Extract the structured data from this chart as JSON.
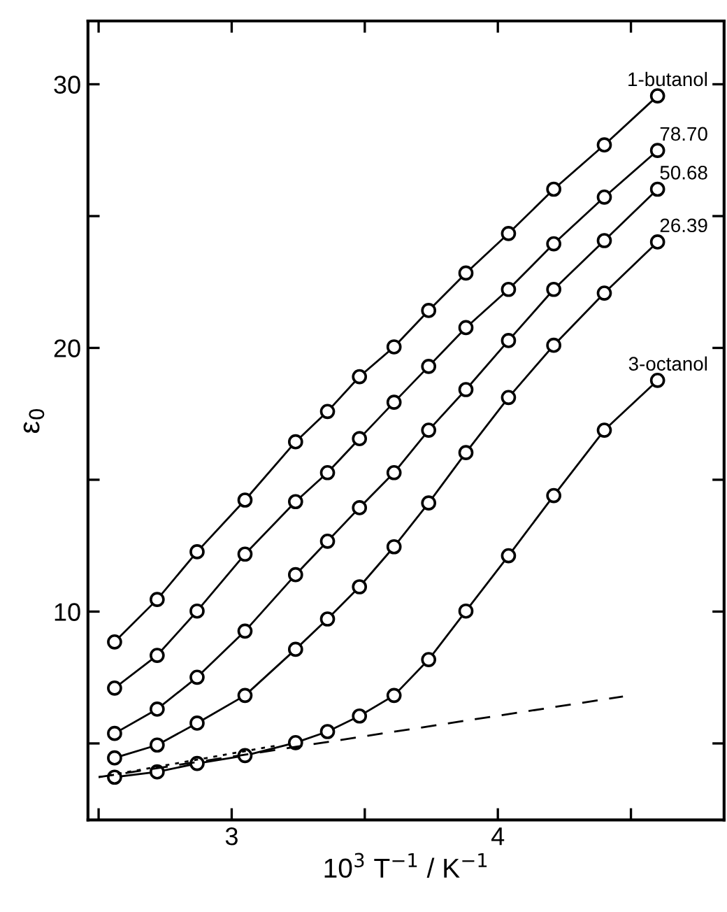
{
  "chart_data": {
    "type": "line",
    "xlabel": "10$^{3}$ T$^{−1}$ / K$^{−1}$",
    "ylabel": "ε$_{0}$",
    "x": [
      2.56,
      2.72,
      2.87,
      3.05,
      3.24,
      3.36,
      3.48,
      3.61,
      3.74,
      3.88,
      4.04,
      4.21,
      4.4,
      4.6
    ],
    "xlim": [
      2.46,
      4.85
    ],
    "ylim": [
      2.1,
      32.4
    ],
    "xticks": [
      {
        "value": 2.5,
        "label": null
      },
      3,
      {
        "value": 3.5,
        "label": null
      },
      4,
      {
        "value": 4.5,
        "label": null
      }
    ],
    "yticks": [
      {
        "value": 5,
        "label": null
      },
      10,
      {
        "value": 15,
        "label": null
      },
      20,
      {
        "value": 25,
        "label": null
      },
      30
    ],
    "marker": "circle",
    "line_style": "solid",
    "grid": false,
    "legend": "right",
    "series": [
      {
        "name": "1-butanol",
        "color": "#000000",
        "values": [
          8.85,
          10.46,
          12.27,
          14.23,
          16.44,
          17.59,
          18.91,
          20.04,
          21.42,
          22.84,
          24.34,
          26.02,
          27.7,
          29.56
        ]
      },
      {
        "name": "78.70",
        "color": "#000000",
        "values": [
          7.1,
          8.34,
          10.02,
          12.18,
          14.17,
          15.27,
          16.56,
          17.94,
          19.3,
          20.77,
          22.22,
          23.95,
          25.72,
          27.49
        ]
      },
      {
        "name": "50.68",
        "color": "#000000",
        "values": [
          5.38,
          6.3,
          7.51,
          9.26,
          11.4,
          12.67,
          13.94,
          15.27,
          16.88,
          18.42,
          20.28,
          22.22,
          24.07,
          26.02
        ]
      },
      {
        "name": "26.39",
        "color": "#000000",
        "values": [
          4.45,
          4.94,
          5.77,
          6.82,
          8.57,
          9.72,
          10.94,
          12.46,
          14.12,
          16.03,
          18.12,
          20.1,
          22.08,
          24.02
        ]
      },
      {
        "name": "3-octanol",
        "color": "#000000",
        "values": [
          3.72,
          3.92,
          4.24,
          4.54,
          5.03,
          5.45,
          6.04,
          6.82,
          8.18,
          10.02,
          12.12,
          14.4,
          16.88,
          18.77
        ]
      },
      {
        "type": "line",
        "color": "#000000",
        "marker": "none",
        "line_style": "dashed",
        "x": [
          2.5,
          4.47
        ],
        "values": [
          3.72,
          6.78
        ]
      },
      {
        "type": "line",
        "color": "#000000",
        "marker": "none",
        "line_style": "dotted",
        "x": [
          2.5,
          3.18
        ],
        "values": [
          3.72,
          4.94
        ]
      }
    ]
  }
}
